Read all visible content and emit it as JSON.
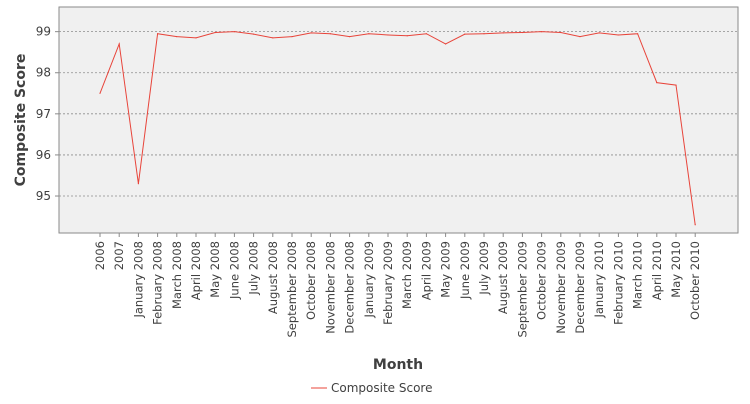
{
  "chart_data": {
    "type": "line",
    "title": "",
    "xlabel": "Month",
    "ylabel": "Composite Score",
    "ylim": [
      94.1,
      99.6
    ],
    "yticks": [
      95,
      96,
      97,
      98,
      99
    ],
    "grid": true,
    "legend": "bottom-center",
    "categories": [
      "2006",
      "2007",
      "January 2008",
      "February 2008",
      "March 2008",
      "April 2008",
      "May 2008",
      "June 2008",
      "July 2008",
      "August 2008",
      "September 2008",
      "October 2008",
      "November 2008",
      "December 2008",
      "January 2009",
      "February 2009",
      "March 2009",
      "April 2009",
      "May 2009",
      "June 2009",
      "July 2009",
      "August 2009",
      "September 2009",
      "October 2009",
      "November 2009",
      "December 2009",
      "January 2010",
      "February 2010",
      "March 2010",
      "April 2010",
      "May 2010",
      "October 2010"
    ],
    "series": [
      {
        "name": "Composite Score",
        "color": "#e8443a",
        "values": [
          97.5,
          98.7,
          95.3,
          98.95,
          98.88,
          98.85,
          98.98,
          99.0,
          98.94,
          98.85,
          98.88,
          98.97,
          98.95,
          98.88,
          98.95,
          98.92,
          98.9,
          98.95,
          98.7,
          98.94,
          98.95,
          98.97,
          98.98,
          99.0,
          98.98,
          98.88,
          98.97,
          98.92,
          98.95,
          97.76,
          97.7,
          94.3
        ]
      }
    ]
  }
}
